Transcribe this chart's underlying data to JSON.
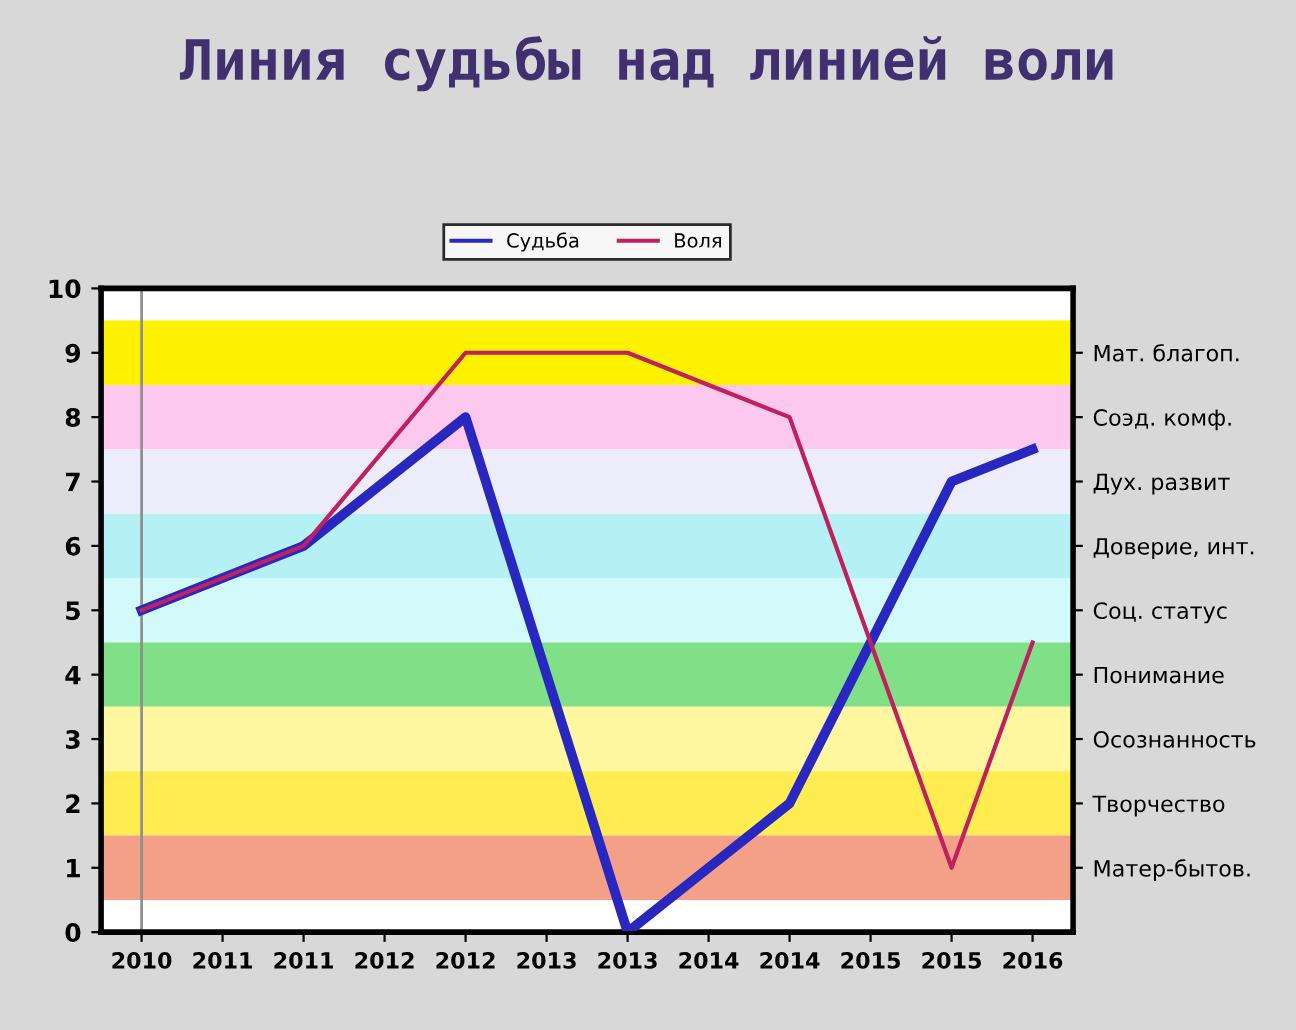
{
  "chart_data": {
    "type": "line",
    "title": "Линия судьбы над линией воли",
    "categories": [
      "2010",
      "2011",
      "2011",
      "2012",
      "2012",
      "2013",
      "2013",
      "2014",
      "2014",
      "2015",
      "2015",
      "2016"
    ],
    "series": [
      {
        "name": "Судьба",
        "color": "#2828c0",
        "values": [
          5,
          5.5,
          6,
          7,
          8,
          4,
          0,
          1,
          2,
          4.5,
          7,
          7.5
        ]
      },
      {
        "name": "Воля",
        "color": "#c02060",
        "values": [
          5,
          5.5,
          6,
          7.5,
          9,
          9,
          9,
          8.5,
          8,
          4.5,
          1,
          4.5
        ]
      }
    ],
    "ylim": [
      0,
      10
    ],
    "yticks": [
      0,
      1,
      2,
      3,
      4,
      5,
      6,
      7,
      8,
      9,
      10
    ],
    "bands": [
      {
        "axis": "y",
        "from": 8.5,
        "to": 9.5,
        "label": "Мат. благоп.",
        "color": "#fff200"
      },
      {
        "axis": "y",
        "from": 7.5,
        "to": 8.5,
        "label": "Соэд. комф.",
        "color": "#fcc8ee"
      },
      {
        "axis": "y",
        "from": 6.5,
        "to": 7.5,
        "label": "Дух. развит",
        "color": "#ececfa"
      },
      {
        "axis": "y",
        "from": 5.5,
        "to": 6.5,
        "label": "Доверие, инт.",
        "color": "#b4f0f4"
      },
      {
        "axis": "y",
        "from": 4.5,
        "to": 5.5,
        "label": "Соц. статус",
        "color": "#d2fafa"
      },
      {
        "axis": "y",
        "from": 3.5,
        "to": 4.5,
        "label": "Понимание",
        "color": "#80e088"
      },
      {
        "axis": "y",
        "from": 2.5,
        "to": 3.5,
        "label": "Осознанность",
        "color": "#fff6a0"
      },
      {
        "axis": "y",
        "from": 1.5,
        "to": 2.5,
        "label": "Творчество",
        "color": "#ffec50"
      },
      {
        "axis": "y",
        "from": 0.5,
        "to": 1.5,
        "label": "Матер-бытов.",
        "color": "#f4a088"
      }
    ],
    "ref_lines": [
      {
        "axis": "x",
        "value": "2010",
        "color": "#909090"
      }
    ],
    "legend": "top",
    "grid": false,
    "marker": "none",
    "line_style": "solid"
  }
}
